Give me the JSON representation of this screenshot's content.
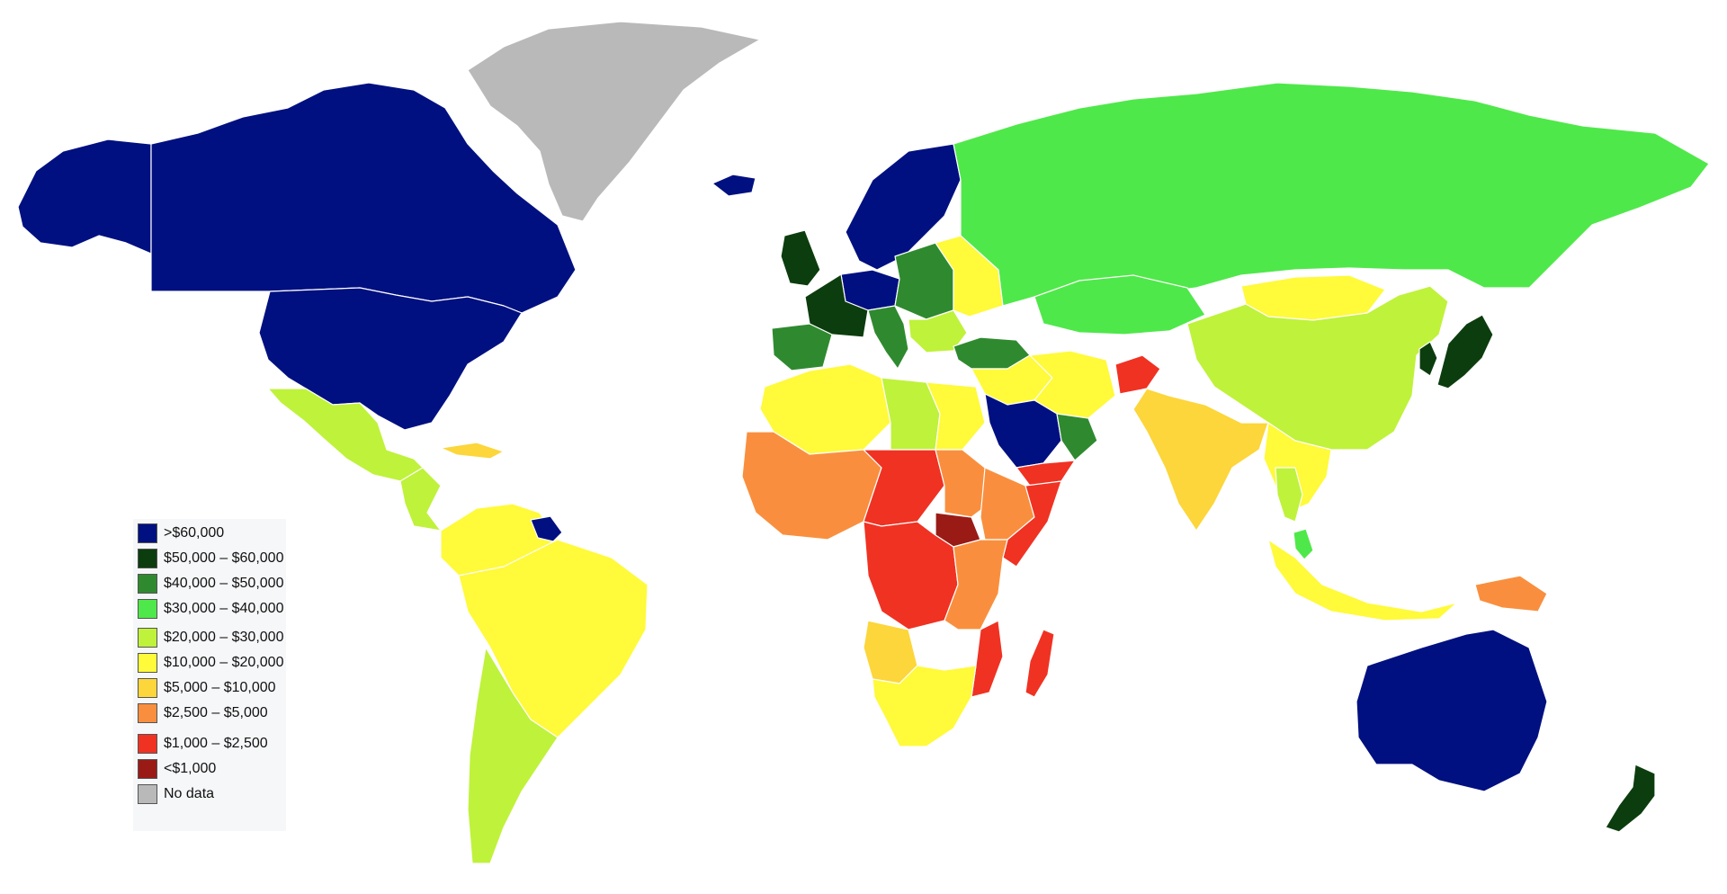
{
  "legend": {
    "items": [
      {
        "label": ">$60,000",
        "color": "#001080"
      },
      {
        "label": "$50,000 – $60,000",
        "color": "#0c3d0e"
      },
      {
        "label": "$40,000 – $50,000",
        "color": "#2f8a2f"
      },
      {
        "label": "$30,000 – $40,000",
        "color": "#4fe84a"
      },
      {
        "label": "$20,000 – $30,000",
        "color": "#bff23a"
      },
      {
        "label": "$10,000 – $20,000",
        "color": "#fffa3a"
      },
      {
        "label": "$5,000 – $10,000",
        "color": "#fcd63a"
      },
      {
        "label": "$2,500 – $5,000",
        "color": "#f98f3e"
      },
      {
        "label": "$1,000 – $2,500",
        "color": "#f03223"
      },
      {
        "label": "<$1,000",
        "color": "#9a1b16"
      },
      {
        "label": "No data",
        "color": "#b9b9b9"
      }
    ]
  },
  "regions": {
    "greenland": "No data",
    "canada": ">$60,000",
    "usa": ">$60,000",
    "alaska": ">$60,000",
    "mexico": "$20,000 – $30,000",
    "central_america": "$20,000 – $30,000",
    "caribbean": "$5,000 – $10,000",
    "south_america_north": "$10,000 – $20,000",
    "brazil": "$10,000 – $20,000",
    "southern_cone": "$20,000 – $30,000",
    "guyana_region": ">$60,000",
    "iceland": ">$60,000",
    "scandinavia": ">$60,000",
    "uk": "$50,000 – $60,000",
    "france": "$50,000 – $60,000",
    "iberia": "$40,000 – $50,000",
    "central_europe": "$40,000 – $50,000",
    "benelux": ">$60,000",
    "italy": "$40,000 – $50,000",
    "balkans": "$20,000 – $30,000",
    "turkey": "$40,000 – $50,000",
    "ukraine": "$10,000 – $20,000",
    "russia": "$30,000 – $40,000",
    "kazakhstan": "$30,000 – $40,000",
    "mongolia": "$10,000 – $20,000",
    "china": "$20,000 – $30,000",
    "korea": "$50,000 – $60,000",
    "japan": "$50,000 – $60,000",
    "middle_east_central": "$10,000 – $20,000",
    "iran": "$10,000 – $20,000",
    "afghanistan": "$1,000 – $2,500",
    "arabia": ">$60,000",
    "oman": "$40,000 – $50,000",
    "yemen": "$1,000 – $2,500",
    "india": "$5,000 – $10,000",
    "southeast_asia": "$10,000 – $20,000",
    "thailand": "$20,000 – $30,000",
    "indonesia": "$10,000 – $20,000",
    "malaysia": "$30,000 – $40,000",
    "png": "$2,500 – $5,000",
    "australia": ">$60,000",
    "new_zealand": "$50,000 – $60,000",
    "north_africa_west": "$10,000 – $20,000",
    "libya": "$20,000 – $30,000",
    "egypt": "$10,000 – $20,000",
    "west_africa": "$2,500 – $5,000",
    "sahel": "$1,000 – $2,500",
    "sudan": "$2,500 – $5,000",
    "south_sudan": "<$1,000",
    "horn_of_africa": "$2,500 – $5,000",
    "somalia": "$1,000 – $2,500",
    "central_africa": "$1,000 – $2,500",
    "east_africa": "$2,500 – $5,000",
    "mozambique": "$1,000 – $2,500",
    "angola": "$5,000 – $10,000",
    "southern_africa": "$10,000 – $20,000",
    "madagascar": "$1,000 – $2,500"
  }
}
